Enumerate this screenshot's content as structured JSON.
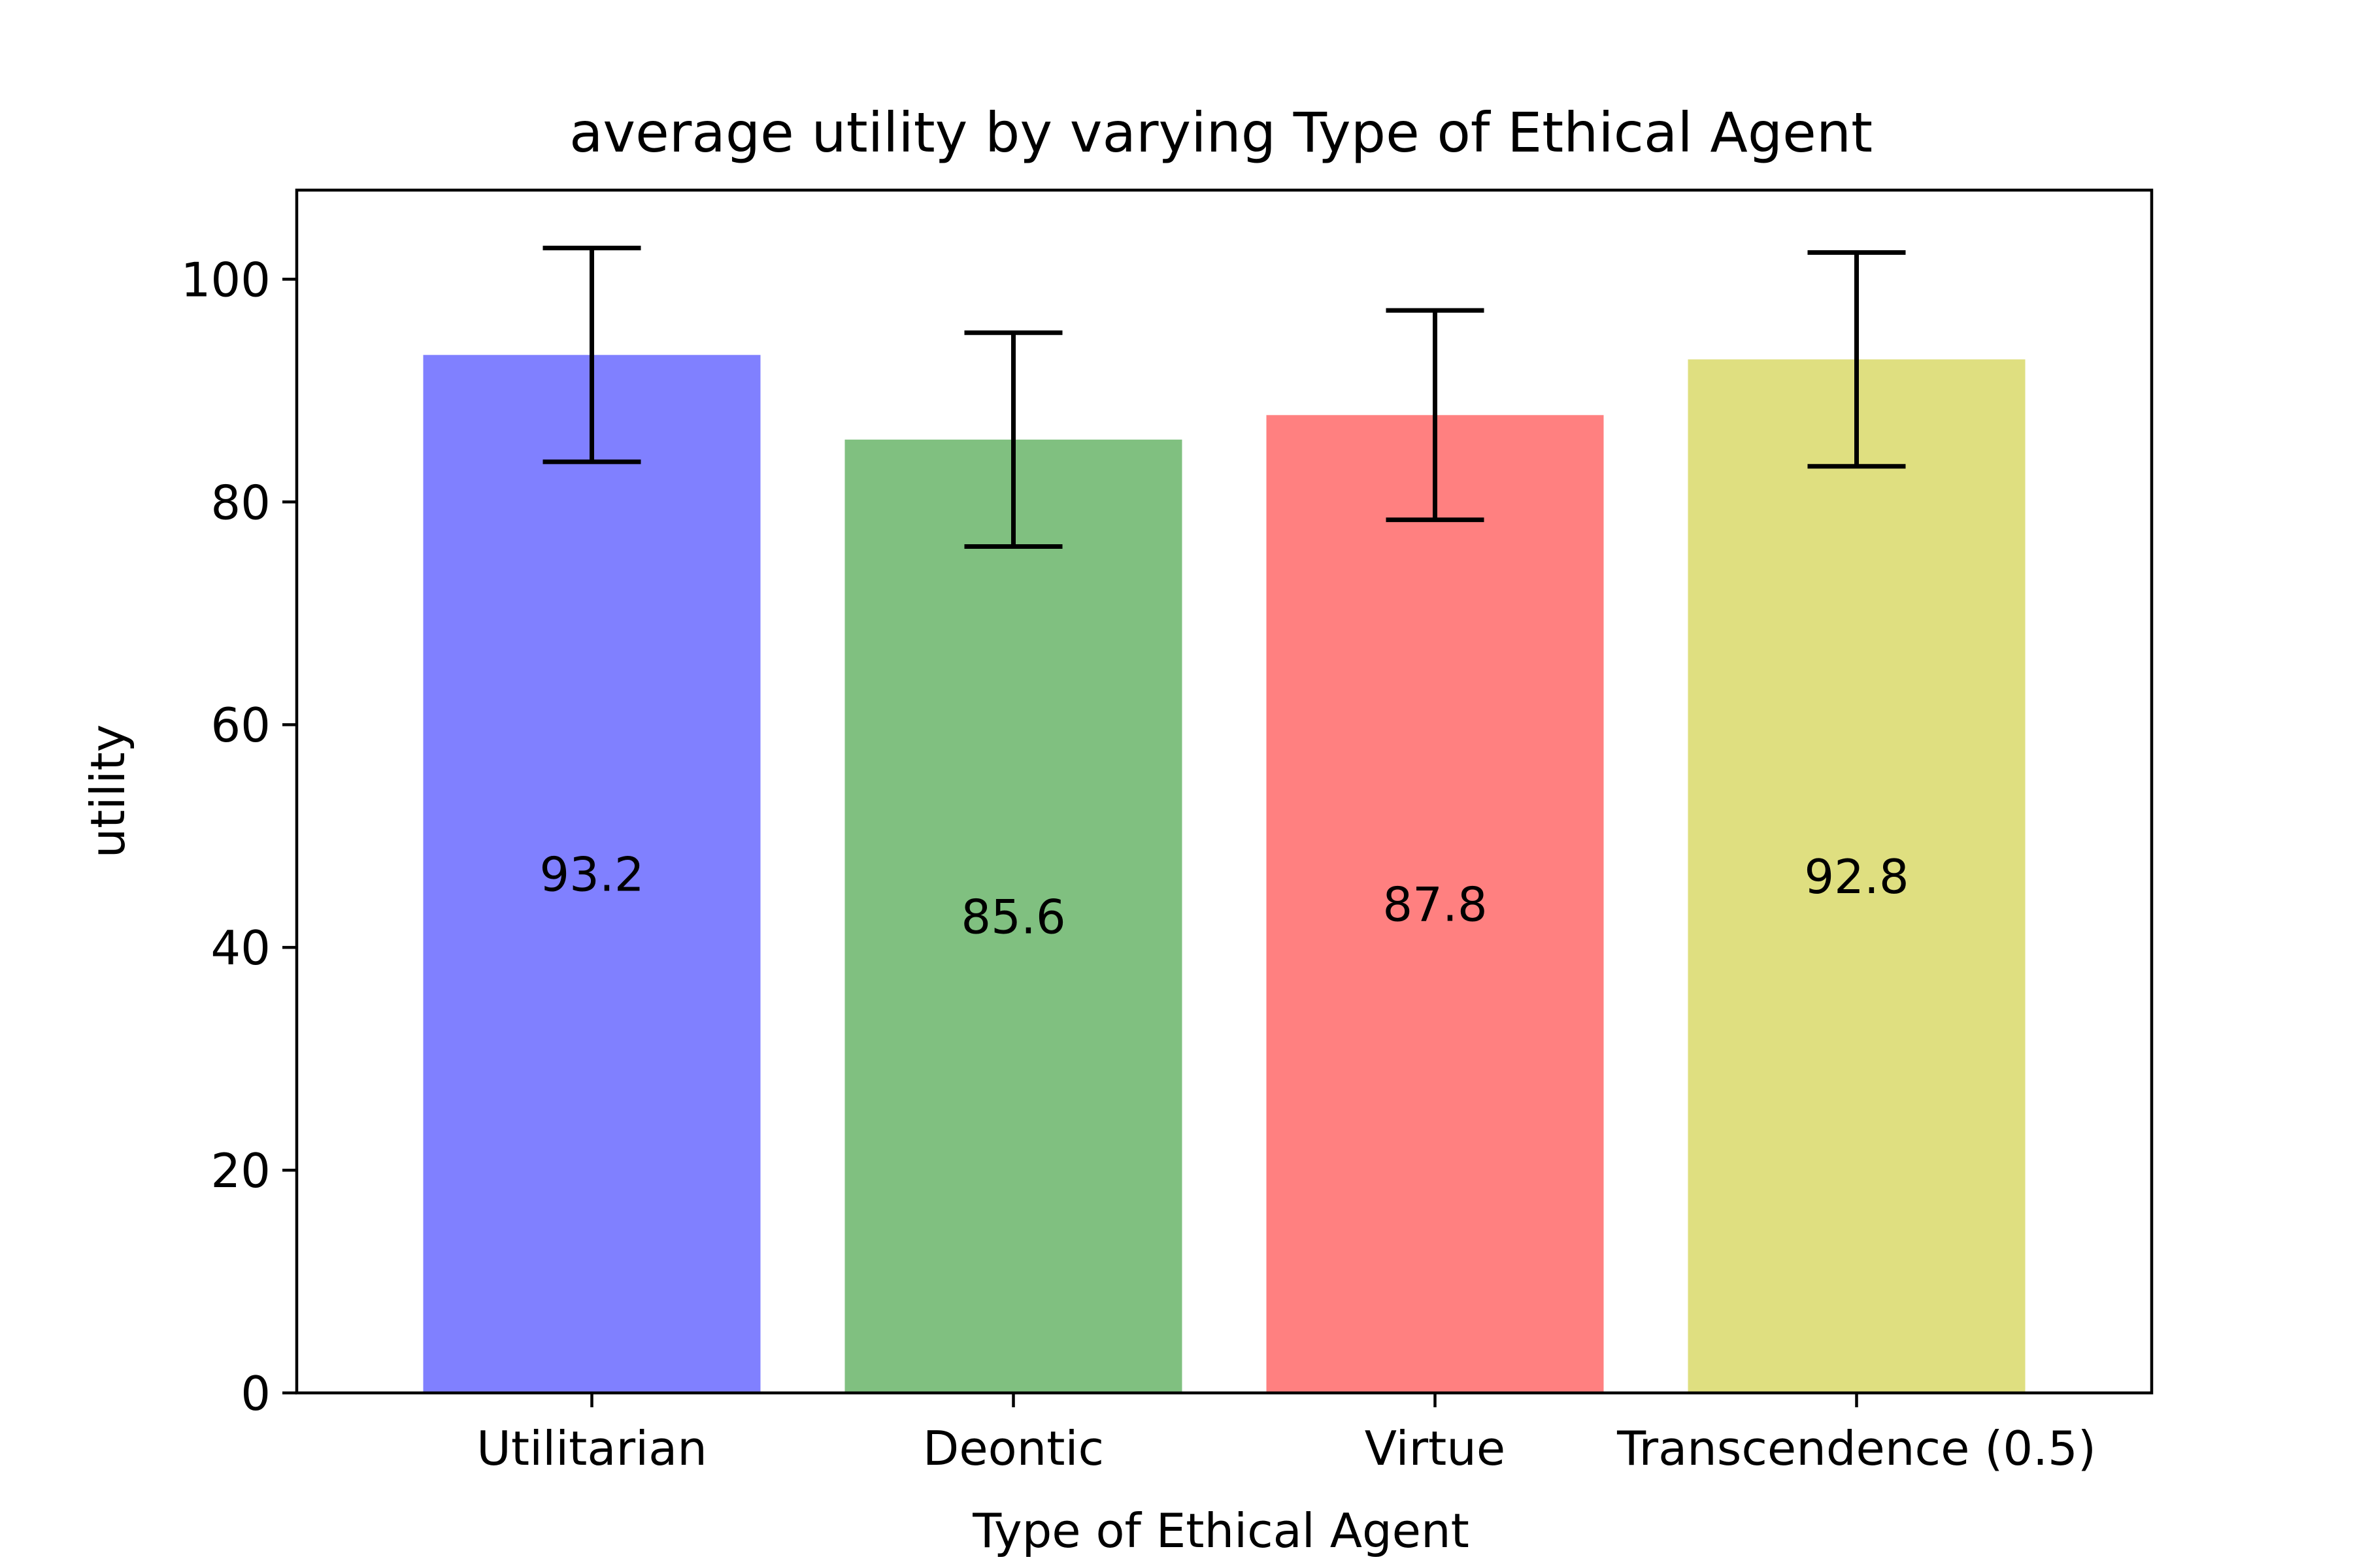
{
  "chart_data": {
    "type": "bar",
    "title": "average utility by varying Type of Ethical Agent",
    "xlabel": "Type of Ethical Agent",
    "ylabel": "utility",
    "categories": [
      "Utilitarian",
      "Deontic",
      "Virtue",
      "Transcendence (0.5)"
    ],
    "values": [
      93.2,
      85.6,
      87.8,
      92.8
    ],
    "value_labels": [
      "93.2",
      "85.6",
      "87.8",
      "92.8"
    ],
    "error_low": [
      83.6,
      76.0,
      78.4,
      83.2
    ],
    "error_high": [
      102.8,
      95.2,
      97.2,
      102.4
    ],
    "colors": [
      "#8080ff",
      "#80c080",
      "#ff8080",
      "#dfdf80"
    ],
    "ylim": [
      0,
      108
    ],
    "yticks": [
      0,
      20,
      40,
      60,
      80,
      100
    ],
    "ytick_labels": [
      "0",
      "20",
      "40",
      "60",
      "80",
      "100"
    ],
    "grid": false,
    "legend": "none"
  }
}
